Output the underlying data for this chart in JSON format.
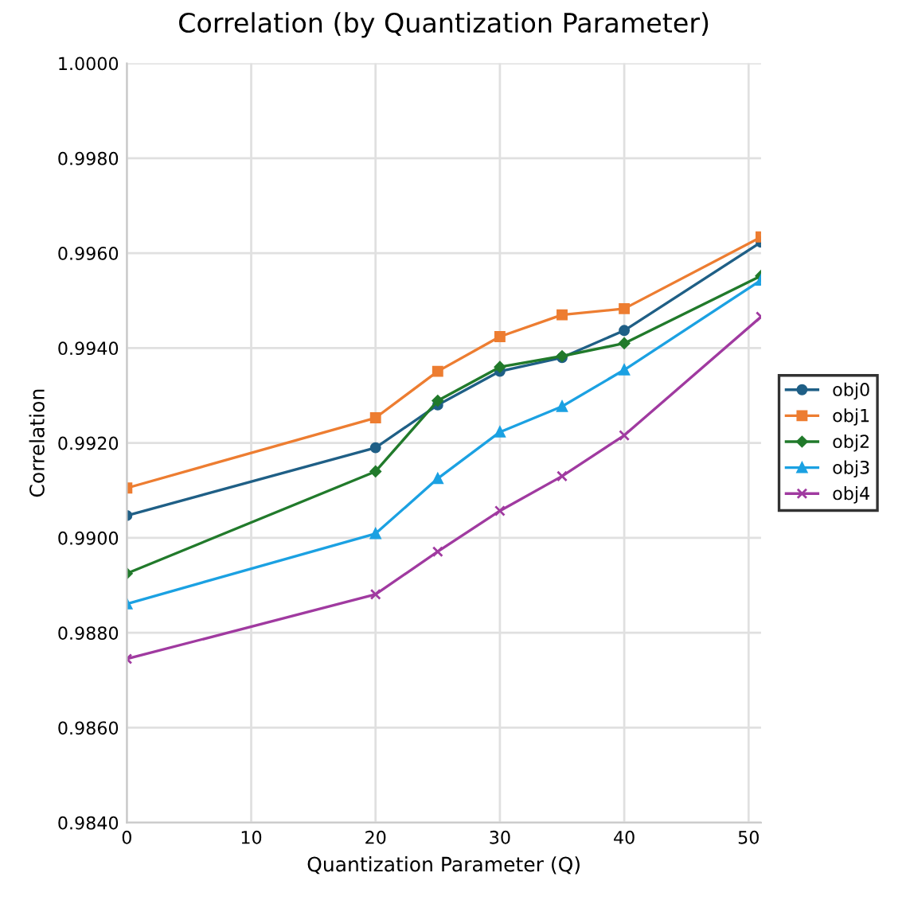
{
  "chart_data": {
    "type": "line",
    "title": "Correlation (by Quantization Parameter)",
    "xlabel": "Quantization Parameter (Q)",
    "ylabel": "Correlation",
    "x": [
      0,
      20,
      25,
      30,
      35,
      40,
      51
    ],
    "series": [
      {
        "name": "obj0",
        "color": "#1f5f86",
        "marker": "circle",
        "values": [
          0.99047,
          0.9919,
          0.9928,
          0.99351,
          0.9938,
          0.99437,
          0.99623
        ]
      },
      {
        "name": "obj1",
        "color": "#ed7d31",
        "marker": "square",
        "values": [
          0.99105,
          0.99253,
          0.99351,
          0.99424,
          0.9947,
          0.99483,
          0.99634
        ]
      },
      {
        "name": "obj2",
        "color": "#217a2b",
        "marker": "diamond",
        "values": [
          0.98925,
          0.9914,
          0.99289,
          0.9936,
          0.99383,
          0.9941,
          0.99552
        ]
      },
      {
        "name": "obj3",
        "color": "#1ba1e2",
        "marker": "triangle",
        "values": [
          0.98861,
          0.99009,
          0.99125,
          0.99223,
          0.99277,
          0.99354,
          0.99543
        ]
      },
      {
        "name": "obj4",
        "color": "#a03aa0",
        "marker": "cross",
        "values": [
          0.98745,
          0.98881,
          0.98971,
          0.99057,
          0.9913,
          0.99216,
          0.99466
        ]
      }
    ],
    "xlim": [
      0,
      51
    ],
    "xticks": [
      0,
      10,
      20,
      30,
      40,
      50
    ],
    "ylim": [
      0.984,
      1.0
    ],
    "yticks": [
      {
        "value": 0.984,
        "label": "0.9840"
      },
      {
        "value": 0.986,
        "label": "0.9860"
      },
      {
        "value": 0.988,
        "label": "0.9880"
      },
      {
        "value": 0.99,
        "label": "0.9900"
      },
      {
        "value": 0.992,
        "label": "0.9920"
      },
      {
        "value": 0.994,
        "label": "0.9940"
      },
      {
        "value": 0.996,
        "label": "0.9960"
      },
      {
        "value": 0.998,
        "label": "0.9980"
      },
      {
        "value": 1.0,
        "label": "1.0000"
      }
    ],
    "grid": true,
    "legend": "right",
    "line_style": "solid"
  }
}
